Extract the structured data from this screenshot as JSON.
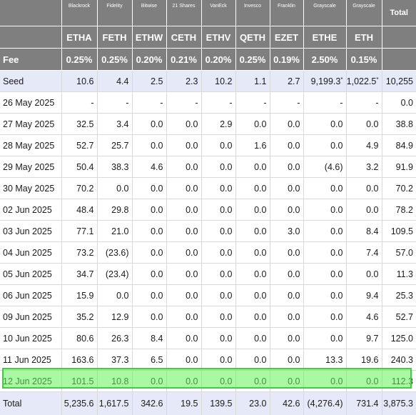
{
  "header": {
    "issuers": [
      "Blackrock",
      "Fidelity",
      "Bitwise",
      "21 Shares",
      "VanEck",
      "Invesco",
      "Franklin",
      "Grayscale",
      "Grayscale"
    ],
    "total_label": "Total",
    "tickers": [
      "ETHA",
      "FETH",
      "ETHW",
      "CETH",
      "ETHV",
      "QETH",
      "EZET",
      "ETHE",
      "ETH"
    ],
    "fee_label": "Fee",
    "fees": [
      "0.25%",
      "0.25%",
      "0.20%",
      "0.21%",
      "0.20%",
      "0.25%",
      "0.19%",
      "2.50%",
      "0.15%"
    ]
  },
  "rows": [
    {
      "label": "Seed",
      "cells": [
        "10.6",
        "4.4",
        "2.5",
        "2.3",
        "10.2",
        "1.1",
        "2.7",
        "9,199.3",
        "1,022.5",
        "10,255"
      ]
    },
    {
      "label": "26 May 2025",
      "cells": [
        "-",
        "-",
        "-",
        "-",
        "-",
        "-",
        "-",
        "-",
        "-",
        "0.0"
      ]
    },
    {
      "label": "27 May 2025",
      "cells": [
        "32.5",
        "3.4",
        "0.0",
        "0.0",
        "2.9",
        "0.0",
        "0.0",
        "0.0",
        "0.0",
        "38.8"
      ]
    },
    {
      "label": "28 May 2025",
      "cells": [
        "52.7",
        "25.7",
        "0.0",
        "0.0",
        "0.0",
        "1.6",
        "0.0",
        "0.0",
        "4.9",
        "84.9"
      ]
    },
    {
      "label": "29 May 2025",
      "cells": [
        "50.4",
        "38.3",
        "4.6",
        "0.0",
        "0.0",
        "0.0",
        "0.0",
        "(4.6)",
        "3.2",
        "91.9"
      ]
    },
    {
      "label": "30 May 2025",
      "cells": [
        "70.2",
        "0.0",
        "0.0",
        "0.0",
        "0.0",
        "0.0",
        "0.0",
        "0.0",
        "0.0",
        "70.2"
      ]
    },
    {
      "label": "02 Jun 2025",
      "cells": [
        "48.4",
        "29.8",
        "0.0",
        "0.0",
        "0.0",
        "0.0",
        "0.0",
        "0.0",
        "0.0",
        "78.2"
      ]
    },
    {
      "label": "03 Jun 2025",
      "cells": [
        "77.1",
        "21.0",
        "0.0",
        "0.0",
        "0.0",
        "0.0",
        "3.0",
        "0.0",
        "8.4",
        "109.5"
      ]
    },
    {
      "label": "04 Jun 2025",
      "cells": [
        "73.2",
        "(23.6)",
        "0.0",
        "0.0",
        "0.0",
        "0.0",
        "0.0",
        "0.0",
        "7.4",
        "57.0"
      ]
    },
    {
      "label": "05 Jun 2025",
      "cells": [
        "34.7",
        "(23.4)",
        "0.0",
        "0.0",
        "0.0",
        "0.0",
        "0.0",
        "0.0",
        "0.0",
        "11.3"
      ]
    },
    {
      "label": "06 Jun 2025",
      "cells": [
        "15.9",
        "0.0",
        "0.0",
        "0.0",
        "0.0",
        "0.0",
        "0.0",
        "0.0",
        "9.4",
        "25.3"
      ]
    },
    {
      "label": "09 Jun 2025",
      "cells": [
        "35.2",
        "12.9",
        "0.0",
        "0.0",
        "0.0",
        "0.0",
        "0.0",
        "0.0",
        "4.6",
        "52.7"
      ]
    },
    {
      "label": "10 Jun 2025",
      "cells": [
        "80.6",
        "26.3",
        "8.4",
        "0.0",
        "0.0",
        "0.0",
        "0.0",
        "0.0",
        "9.7",
        "125.0"
      ]
    },
    {
      "label": "11 Jun 2025",
      "cells": [
        "163.6",
        "37.3",
        "6.5",
        "0.0",
        "0.0",
        "0.0",
        "0.0",
        "13.3",
        "19.6",
        "240.3"
      ]
    },
    {
      "label": "12 Jun 2025",
      "cells": [
        "101.5",
        "10.8",
        "0.0",
        "0.0",
        "0.0",
        "0.0",
        "0.0",
        "0.0",
        "0.0",
        "112.3"
      ]
    }
  ],
  "seed_footnote_mark": "*",
  "total_row": {
    "label": "Total",
    "cells": [
      "5,235.6",
      "1,617.5",
      "342.6",
      "19.5",
      "139.5",
      "23.0",
      "42.6",
      "(4,276.4)",
      "731.4",
      "3,875.3"
    ]
  },
  "colors": {
    "header_bg": "#7f7f80",
    "row_tint": "#e6e9f8",
    "negative": "#e0242b",
    "highlight": "#65f059"
  }
}
